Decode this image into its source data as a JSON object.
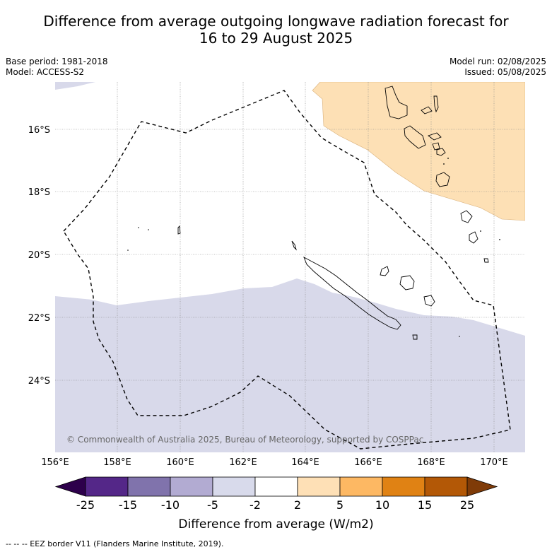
{
  "title": {
    "line1": "Difference from average outgoing longwave radiation forecast for",
    "line2": "16 to 29 August 2025"
  },
  "meta_left": {
    "base_period": "Base period: 1981-2018",
    "model": "Model: ACCESS-S2"
  },
  "meta_right": {
    "model_run": "Model run: 02/08/2025",
    "issued": "Issued: 05/08/2025"
  },
  "map": {
    "lon_ticks": [
      "156°E",
      "158°E",
      "160°E",
      "162°E",
      "164°E",
      "166°E",
      "168°E",
      "170°E"
    ],
    "lat_ticks": [
      "16°S",
      "18°S",
      "20°S",
      "22°S",
      "24°S"
    ],
    "copyright": "© Commonwealth of Australia 2025, Bureau of Meteorology, supported by COSPPac"
  },
  "colorbar": {
    "label": "Difference from average (W/m2)",
    "ticks": [
      "-25",
      "-15",
      "-10",
      "-5",
      "-2",
      "2",
      "5",
      "10",
      "15",
      "25"
    ],
    "colors": [
      "#2d004b",
      "#542788",
      "#8073ac",
      "#b2abd2",
      "#d8daeb",
      "#ffffff",
      "#fee0b6",
      "#fdb863",
      "#e08214",
      "#b35806",
      "#7f3b08"
    ]
  },
  "footnote": "--  --  -- EEZ border V11 (Flanders Marine Institute, 2019)."
}
